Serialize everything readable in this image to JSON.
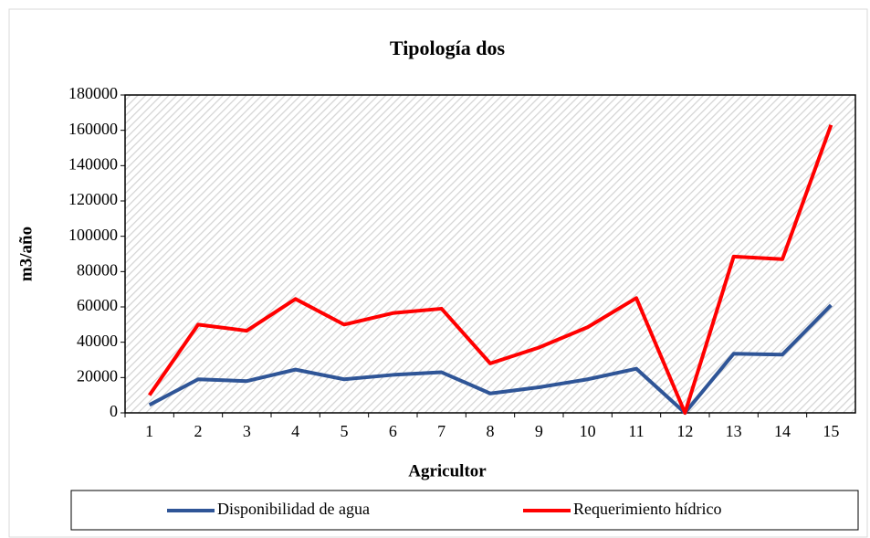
{
  "chart_data": {
    "type": "line",
    "title": "Tipología dos",
    "xlabel": "Agricultor",
    "ylabel": "m3/año",
    "categories": [
      "1",
      "2",
      "3",
      "4",
      "5",
      "6",
      "7",
      "8",
      "9",
      "10",
      "11",
      "12",
      "13",
      "14",
      "15"
    ],
    "series": [
      {
        "name": "Disponibilidad de agua",
        "color": "#2f5597",
        "values": [
          4500,
          19000,
          18000,
          24500,
          19000,
          21500,
          23000,
          11000,
          14500,
          19000,
          25000,
          0,
          33500,
          33000,
          61000
        ]
      },
      {
        "name": "Requerimiento hídrico",
        "color": "#ff0000",
        "values": [
          10000,
          50000,
          46500,
          64500,
          50000,
          56500,
          59000,
          28000,
          37000,
          48500,
          65000,
          0,
          88500,
          87000,
          163000
        ]
      }
    ],
    "ylim": [
      0,
      180000
    ],
    "yticks": [
      0,
      20000,
      40000,
      60000,
      80000,
      100000,
      120000,
      140000,
      160000,
      180000
    ],
    "legend": "bottom"
  }
}
